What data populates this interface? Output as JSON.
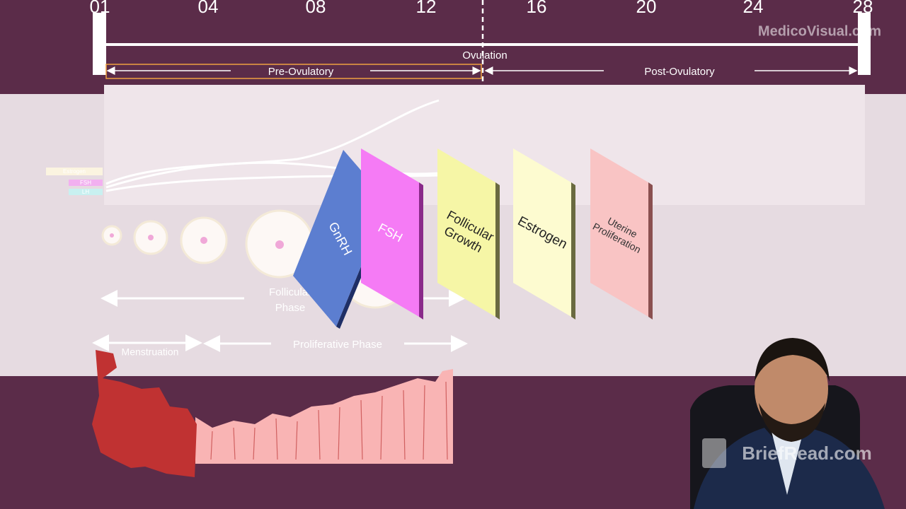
{
  "timeline": {
    "days": [
      "01",
      "04",
      "08",
      "12",
      "16",
      "20",
      "24",
      "28"
    ],
    "ovulation": "Ovulation",
    "pre": "Pre-Ovulatory",
    "post": "Post-Ovulatory"
  },
  "watermark_top": "MedicoVisual.com",
  "legend": [
    "Estrogen",
    "FSH",
    "LH"
  ],
  "cards": [
    {
      "lines": [
        "GnRH"
      ]
    },
    {
      "lines": [
        "FSH"
      ]
    },
    {
      "lines": [
        "Follicular",
        "Growth"
      ]
    },
    {
      "lines": [
        "Estrogen"
      ]
    },
    {
      "lines": [
        "Uterine",
        "Proliferation"
      ]
    }
  ],
  "phases": {
    "follicular": [
      "Follicular",
      "Phase"
    ],
    "menstruation": "Menstruation",
    "proliferative": "Proliferative Phase"
  },
  "watermark_bottom": "BriefRead.com"
}
